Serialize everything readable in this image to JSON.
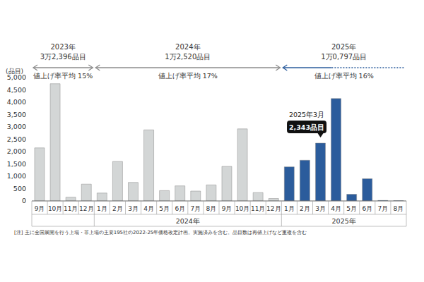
{
  "chart_data": {
    "type": "bar",
    "y_label": "(品目)",
    "categories": [
      "9月",
      "10月",
      "11月",
      "12月",
      "1月",
      "2月",
      "3月",
      "4月",
      "5月",
      "6月",
      "7月",
      "8月",
      "9月",
      "10月",
      "11月",
      "12月",
      "1月",
      "2月",
      "3月",
      "4月",
      "5月",
      "6月",
      "7月",
      "8月"
    ],
    "values": [
      2150,
      4750,
      150,
      680,
      320,
      1600,
      750,
      2880,
      420,
      610,
      400,
      650,
      1400,
      2920,
      340,
      100,
      1380,
      1650,
      2343,
      4150,
      270,
      900,
      20,
      10
    ],
    "colors": [
      "#d3d6d6",
      "#d3d6d6",
      "#d3d6d6",
      "#d3d6d6",
      "#d3d6d6",
      "#d3d6d6",
      "#d3d6d6",
      "#d3d6d6",
      "#d3d6d6",
      "#d3d6d6",
      "#d3d6d6",
      "#d3d6d6",
      "#d3d6d6",
      "#d3d6d6",
      "#d3d6d6",
      "#d3d6d6",
      "#2b5c9c",
      "#2b5c9c",
      "#2b5c9c",
      "#2b5c9c",
      "#2b5c9c",
      "#2b5c9c",
      "#2b5c9c",
      "#2b5c9c"
    ],
    "ylim": [
      0,
      5000
    ],
    "yticks": [
      0,
      500,
      {
        "value": 1000,
        "label": "1,000"
      },
      {
        "value": 1500,
        "label": "1,500"
      },
      {
        "value": 2000,
        "label": "2,000"
      },
      {
        "value": 2500,
        "label": "2,500"
      },
      {
        "value": 3000,
        "label": "3,000"
      },
      {
        "value": 3500,
        "label": "3,500"
      },
      {
        "value": 4000,
        "label": "4,000"
      },
      {
        "value": 4500,
        "label": "4,500"
      },
      {
        "value": 5000,
        "label": "5,000"
      }
    ],
    "grid": false,
    "periods": [
      {
        "label": "2023年",
        "total": "3万2,396品目",
        "rate": "値上げ率平均 15%",
        "color": "#8c8c8c"
      },
      {
        "label": "2024年",
        "total": "1万2,520品目",
        "rate": "値上げ率平均 17%",
        "color": "#8c8c8c",
        "axis_label": "2024年"
      },
      {
        "label": "2025年",
        "total": "1万0,797品目",
        "rate": "値上げ率平均 16%",
        "color": "#2b5c9c",
        "axis_label": "2025年"
      }
    ],
    "callout": {
      "title": "2025年3月",
      "label": "2,343品目",
      "value": 2343
    },
    "note": "[注] 主に全国展開を行う上場・非上場の主要195社の2022-25年価格改定計画。実施済みを含む。品目数は再値上げなど重複を含む"
  }
}
